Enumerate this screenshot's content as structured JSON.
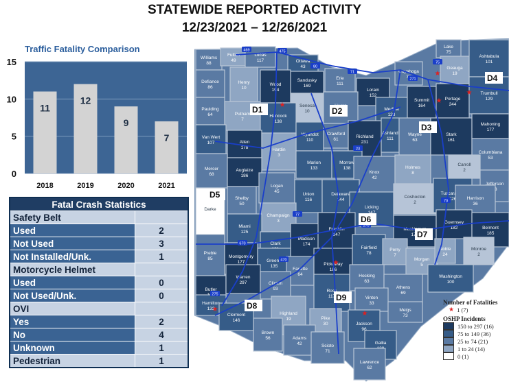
{
  "header": {
    "title": "STATEWIDE REPORTED ACTIVITY",
    "date_range": "12/23/2021 – 12/26/2021"
  },
  "chart_data": {
    "type": "bar",
    "title": "Traffic Fatality Comparison",
    "categories": [
      "2018",
      "2019",
      "2020",
      "2021"
    ],
    "values": [
      11,
      12,
      9,
      7
    ],
    "yticks": [
      0,
      5,
      10,
      15
    ],
    "ylim": [
      0,
      15
    ],
    "grid": true,
    "xlabel": "",
    "ylabel": "",
    "colors": {
      "panel": "#3d6594",
      "bar": "#d3d3d3",
      "grid": "#7f9bbd",
      "label": "#1f2f44"
    }
  },
  "table": {
    "title": "Fatal Crash Statistics",
    "sections": [
      {
        "label": "Safety Belt",
        "rows": [
          {
            "label": "Used",
            "value": "2"
          },
          {
            "label": "Not Used",
            "value": "3"
          },
          {
            "label": "Not Installed/Unk.",
            "value": "1"
          }
        ]
      },
      {
        "label": "Motorcycle Helmet",
        "rows": [
          {
            "label": "Used",
            "value": "0"
          },
          {
            "label": "Not Used/Unk.",
            "value": "0"
          }
        ]
      },
      {
        "label": "OVI",
        "rows": [
          {
            "label": "Yes",
            "value": "2"
          },
          {
            "label": "No",
            "value": "4"
          },
          {
            "label": "Unknown",
            "value": "1"
          }
        ]
      },
      {
        "label": "Pedestrian",
        "value": "1"
      }
    ]
  },
  "map": {
    "districts": [
      "D1",
      "D2",
      "D3",
      "D4",
      "D5",
      "D6",
      "D7",
      "D8",
      "D9"
    ],
    "counties": [
      {
        "name": "Williams",
        "value": "88",
        "shade": "mid"
      },
      {
        "name": "Fulton",
        "value": "49",
        "shade": "light"
      },
      {
        "name": "Lucas",
        "value": "117",
        "shade": "mid"
      },
      {
        "name": "Ottawa",
        "value": "43",
        "shade": "dark"
      },
      {
        "name": "Sandusky",
        "value": "169",
        "shade": "darkest"
      },
      {
        "name": "Erie",
        "value": "111",
        "shade": "mid"
      },
      {
        "name": "Lorain",
        "value": "152",
        "shade": "darkest"
      },
      {
        "name": "Cuyahoga",
        "value": "73",
        "shade": "mid"
      },
      {
        "name": "Lake",
        "value": "75",
        "shade": "mid"
      },
      {
        "name": "Geauga",
        "value": "19",
        "shade": "light"
      },
      {
        "name": "Ashtabula",
        "value": "101",
        "shade": "dark"
      },
      {
        "name": "Defiance",
        "value": "86",
        "shade": "mid"
      },
      {
        "name": "Henry",
        "value": "10",
        "shade": "light"
      },
      {
        "name": "Wood",
        "value": "194",
        "shade": "darkest"
      },
      {
        "name": "Seneca",
        "value": "10",
        "shade": "lighter"
      },
      {
        "name": "Huron",
        "value": "47",
        "shade": "mid"
      },
      {
        "name": "Medina",
        "value": "123",
        "shade": "dark"
      },
      {
        "name": "Summit",
        "value": "164",
        "shade": "darkest"
      },
      {
        "name": "Portage",
        "value": "244",
        "shade": "darkest"
      },
      {
        "name": "Trumbull",
        "value": "129",
        "shade": "dark"
      },
      {
        "name": "Paulding",
        "value": "64",
        "shade": "mid"
      },
      {
        "name": "Putnam",
        "value": "7",
        "shade": "light"
      },
      {
        "name": "Hancock",
        "value": "138",
        "shade": "dark"
      },
      {
        "name": "Wyandot",
        "value": "110",
        "shade": "dark"
      },
      {
        "name": "Crawford",
        "value": "61",
        "shade": "mid"
      },
      {
        "name": "Richland",
        "value": "231",
        "shade": "darkest"
      },
      {
        "name": "Ashland",
        "value": "111",
        "shade": "dark"
      },
      {
        "name": "Wayne",
        "value": "63",
        "shade": "mid"
      },
      {
        "name": "Stark",
        "value": "161",
        "shade": "darkest"
      },
      {
        "name": "Mahoning",
        "value": "177",
        "shade": "darkest"
      },
      {
        "name": "Columbiana",
        "value": "53",
        "shade": "mid"
      },
      {
        "name": "Van Wert",
        "value": "107",
        "shade": "dark"
      },
      {
        "name": "Allen",
        "value": "178",
        "shade": "darkest"
      },
      {
        "name": "Hardin",
        "value": "3",
        "shade": "light"
      },
      {
        "name": "Marion",
        "value": "133",
        "shade": "dark"
      },
      {
        "name": "Morrow",
        "value": "138",
        "shade": "dark"
      },
      {
        "name": "Knox",
        "value": "42",
        "shade": "mid"
      },
      {
        "name": "Holmes",
        "value": "8",
        "shade": "light"
      },
      {
        "name": "Carroll",
        "value": "2",
        "shade": "lighter"
      },
      {
        "name": "Jefferson",
        "value": "93",
        "shade": "mid"
      },
      {
        "name": "Mercer",
        "value": "68",
        "shade": "mid"
      },
      {
        "name": "Auglaize",
        "value": "186",
        "shade": "darkest"
      },
      {
        "name": "Logan",
        "value": "45",
        "shade": "mid"
      },
      {
        "name": "Union",
        "value": "116",
        "shade": "dark"
      },
      {
        "name": "Delaware",
        "value": "144",
        "shade": "dark"
      },
      {
        "name": "Licking",
        "value": "147",
        "shade": "dark"
      },
      {
        "name": "Coshocton",
        "value": "2",
        "shade": "lighter"
      },
      {
        "name": "Tuscarawas",
        "value": "126",
        "shade": "dark"
      },
      {
        "name": "Harrison",
        "value": "36",
        "shade": "mid"
      },
      {
        "name": "Shelby",
        "value": "50",
        "shade": "mid"
      },
      {
        "name": "Darke",
        "value": "",
        "shade": "none"
      },
      {
        "name": "Champaign",
        "value": "3",
        "shade": "light"
      },
      {
        "name": "Miami",
        "value": "125",
        "shade": "dark"
      },
      {
        "name": "Clark",
        "value": "121",
        "shade": "dark"
      },
      {
        "name": "Madison",
        "value": "174",
        "shade": "darkest"
      },
      {
        "name": "Franklin",
        "value": "247",
        "shade": "darkest"
      },
      {
        "name": "Muskingum",
        "value": "173",
        "shade": "darkest"
      },
      {
        "name": "Guernsey",
        "value": "182",
        "shade": "darkest"
      },
      {
        "name": "Belmont",
        "value": "185",
        "shade": "darkest"
      },
      {
        "name": "Preble",
        "value": "85",
        "shade": "mid"
      },
      {
        "name": "Montgomery",
        "value": "177",
        "shade": "darkest"
      },
      {
        "name": "Greene",
        "value": "135",
        "shade": "dark"
      },
      {
        "name": "Fayette",
        "value": "64",
        "shade": "mid"
      },
      {
        "name": "Pickaway",
        "value": "186",
        "shade": "darkest"
      },
      {
        "name": "Fairfield",
        "value": "78",
        "shade": "dark"
      },
      {
        "name": "Perry",
        "value": "7",
        "shade": "light"
      },
      {
        "name": "Morgan",
        "value": "5",
        "shade": "light"
      },
      {
        "name": "Noble",
        "value": "24",
        "shade": "light"
      },
      {
        "name": "Monroe",
        "value": "2",
        "shade": "lighter"
      },
      {
        "name": "Butler",
        "value": "162",
        "shade": "darkest"
      },
      {
        "name": "Warren",
        "value": "297",
        "shade": "darkest"
      },
      {
        "name": "Clinton",
        "value": "93",
        "shade": "mid"
      },
      {
        "name": "Ross",
        "value": "117",
        "shade": "dark"
      },
      {
        "name": "Hocking",
        "value": "63",
        "shade": "mid"
      },
      {
        "name": "Athens",
        "value": "69",
        "shade": "mid"
      },
      {
        "name": "Washington",
        "value": "100",
        "shade": "dark"
      },
      {
        "name": "Hamilton",
        "value": "133",
        "shade": "dark"
      },
      {
        "name": "Clermont",
        "value": "146",
        "shade": "dark"
      },
      {
        "name": "Highland",
        "value": "19",
        "shade": "light"
      },
      {
        "name": "Vinton",
        "value": "33",
        "shade": "mid"
      },
      {
        "name": "Meigs",
        "value": "73",
        "shade": "mid"
      },
      {
        "name": "Pike",
        "value": "30",
        "shade": "light"
      },
      {
        "name": "Jackson",
        "value": "96",
        "shade": "dark"
      },
      {
        "name": "Gallia",
        "value": "139",
        "shade": "dark"
      },
      {
        "name": "Brown",
        "value": "56",
        "shade": "mid"
      },
      {
        "name": "Adams",
        "value": "42",
        "shade": "mid"
      },
      {
        "name": "Scioto",
        "value": "71",
        "shade": "mid"
      },
      {
        "name": "Lawrence",
        "value": "62",
        "shade": "mid"
      }
    ],
    "highways": [
      "469",
      "475",
      "80",
      "71",
      "271",
      "75",
      "23",
      "77",
      "270",
      "670",
      "470",
      "275",
      "70"
    ],
    "shade_colors": {
      "darkest": "#1d3a5f",
      "dark": "#365c88",
      "mid": "#5a7aa3",
      "light": "#8fa6c3",
      "lighter": "#b6c4d7",
      "none": "#ffffff"
    },
    "road_color": "#1a3fc9"
  },
  "legend": {
    "fatalities_title": "Number of Fatalities",
    "fatalities_item": "1 (7)",
    "incidents_title": "OSHP Incidents",
    "ranges": [
      {
        "label": "150 to 297 (16)",
        "color": "#1d3a5f"
      },
      {
        "label": "75 to 149 (36)",
        "color": "#365c88"
      },
      {
        "label": "25 to 74 (21)",
        "color": "#5a7aa3"
      },
      {
        "label": "1 to 24 (14)",
        "color": "#8fa6c3"
      },
      {
        "label": "0 (1)",
        "color": "#ffffff"
      }
    ]
  }
}
